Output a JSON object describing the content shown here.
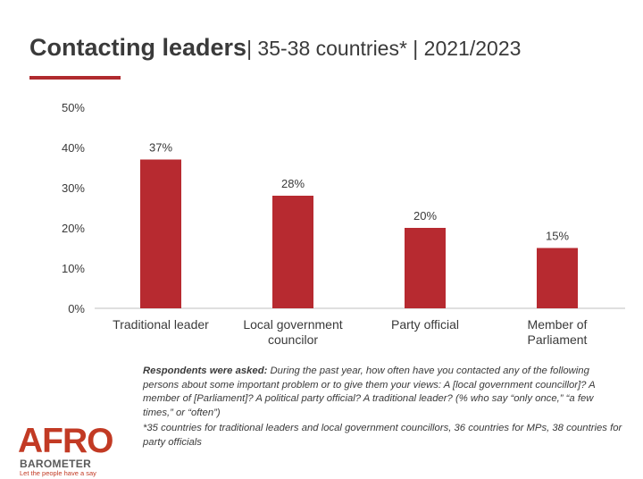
{
  "header": {
    "title_bold": "Contacting leaders",
    "title_rest": "| 35-38 countries* | 2021/2023"
  },
  "colors": {
    "accent": "#b02a2e",
    "bar": "#b72a30",
    "text": "#3a3a3a"
  },
  "chart_data": {
    "type": "bar",
    "title": "Contacting leaders",
    "categories": [
      [
        "Traditional leader"
      ],
      [
        "Local government",
        "councilor"
      ],
      [
        "Party official"
      ],
      [
        "Member of",
        "Parliament"
      ]
    ],
    "values": [
      37,
      28,
      20,
      15
    ],
    "value_labels": [
      "37%",
      "28%",
      "20%",
      "15%"
    ],
    "ylim": [
      0,
      50
    ],
    "yticks": [
      0,
      10,
      20,
      30,
      40,
      50
    ],
    "ytick_labels": [
      "0%",
      "10%",
      "20%",
      "30%",
      "40%",
      "50%"
    ],
    "grid": false,
    "xlabel": "",
    "ylabel": ""
  },
  "note": {
    "lead": "Respondents were asked:",
    "text": "During the past year, how often have you contacted any of the following persons about some important problem or to give them your views: A [local government councillor]? A member of [Parliament]? A political party official? A traditional leader? (% who say “only once,” “a few times,” or “often”)"
  },
  "footnote": "*35 countries for traditional leaders and local government councillors, 36 countries for MPs, 38 countries for party officials",
  "logo": {
    "brand": "AFRO",
    "sub": "BAROMETER",
    "tagline": "Let the people have a say"
  }
}
